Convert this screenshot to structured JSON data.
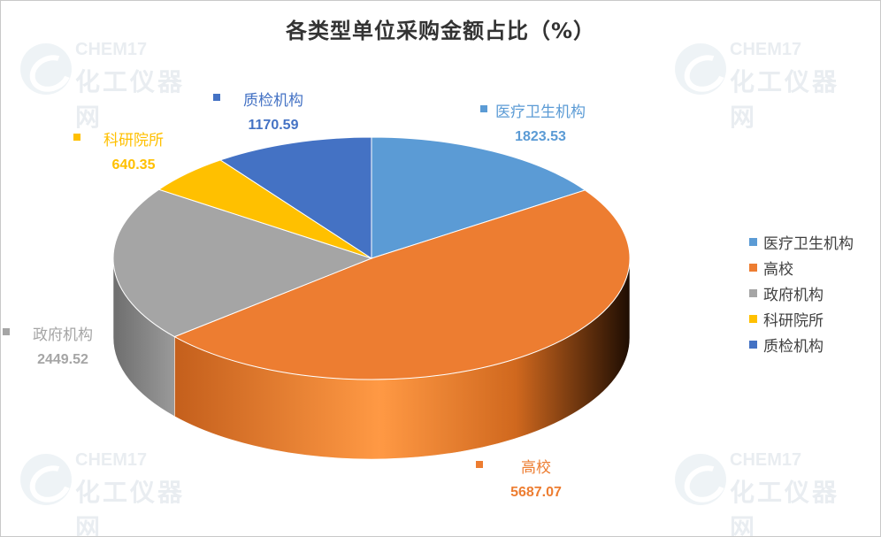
{
  "chart_data": {
    "type": "pie",
    "title": "各类型单位采购金额占比（%）",
    "categories": [
      "医疗卫生机构",
      "高校",
      "政府机构",
      "科研院所",
      "质检机构"
    ],
    "values": [
      1823.53,
      5687.07,
      2449.52,
      640.35,
      1170.59
    ],
    "value_labels": [
      "1823.53",
      "5687.07",
      "2449.52",
      "640.35",
      "1170.59"
    ],
    "colors": [
      "#5B9BD5",
      "#ED7D31",
      "#A5A5A5",
      "#FFC000",
      "#4472C4"
    ],
    "label_colors": [
      "#5B9BD5",
      "#ED7D31",
      "#A5A5A5",
      "#FFC000",
      "#4472C4"
    ],
    "legend_position": "right",
    "style": "3d"
  },
  "watermark": {
    "brand_line1": "CHEM17",
    "brand_line2": "化工仪器网"
  }
}
